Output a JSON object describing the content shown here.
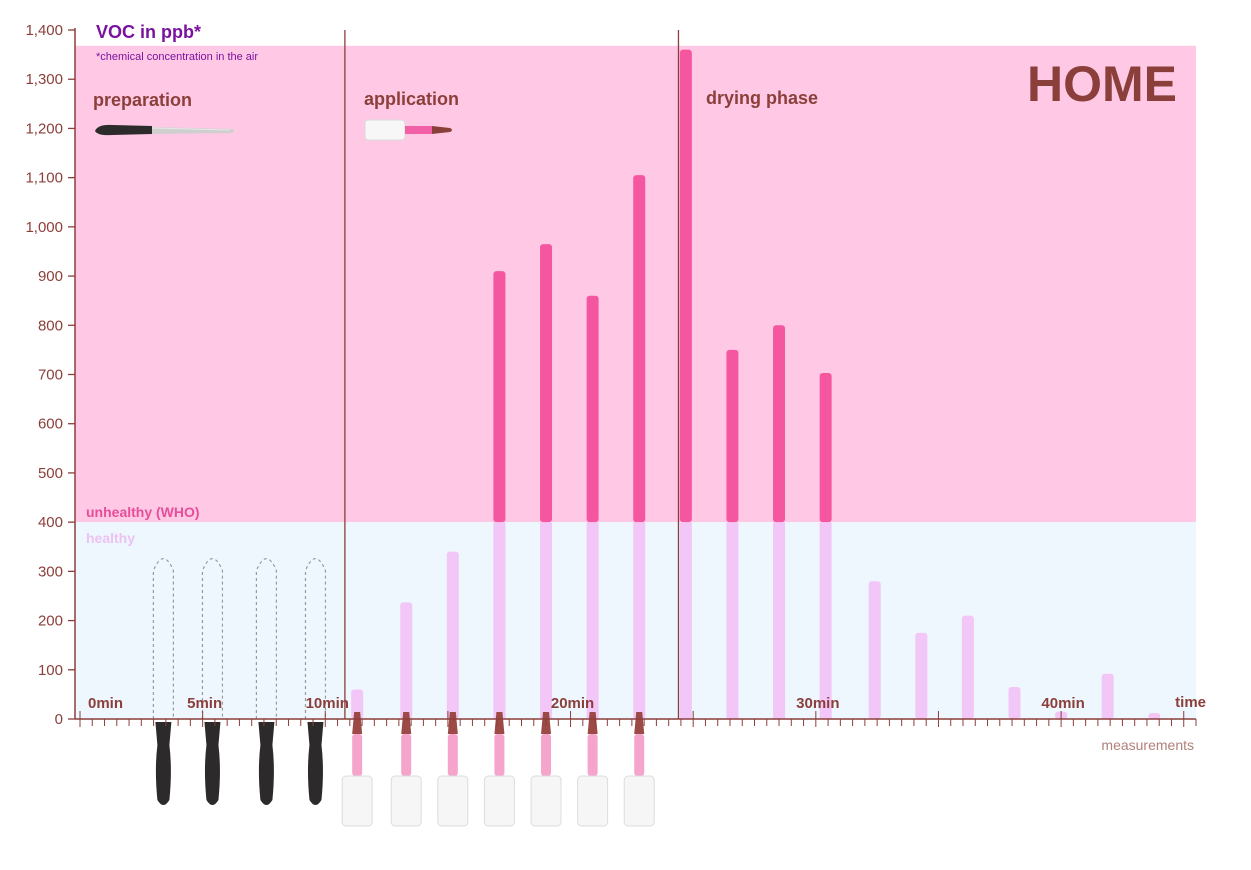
{
  "chart_data": {
    "type": "bar",
    "title": "VOC in ppb*",
    "subtitle": "*chemical concentration in the air",
    "badge": "HOME",
    "ylim": [
      0,
      1400
    ],
    "yticks": [
      0,
      100,
      200,
      300,
      400,
      500,
      600,
      700,
      800,
      900,
      1000,
      1100,
      1200,
      1300,
      1400
    ],
    "ytick_labels": [
      "0",
      "100",
      "200",
      "300",
      "400",
      "500",
      "600",
      "700",
      "800",
      "900",
      "1,000",
      "1,100",
      "1,200",
      "1,300",
      "1,400"
    ],
    "xlim": [
      0,
      45.5
    ],
    "xtick_labels": [
      {
        "x": 0,
        "label": "0min"
      },
      {
        "x": 5,
        "label": "5min"
      },
      {
        "x": 10,
        "label": "10min"
      },
      {
        "x": 20,
        "label": "20min"
      },
      {
        "x": 30,
        "label": "30min"
      },
      {
        "x": 40,
        "label": "40min"
      }
    ],
    "xlabel": "time",
    "x_sublabel": "measurements",
    "threshold": {
      "value": 400,
      "above_label": "unhealthy (WHO)",
      "below_label": "healthy"
    },
    "phases": [
      {
        "label": "preparation",
        "start": 0,
        "end": 10.8
      },
      {
        "label": "application",
        "start": 10.8,
        "end": 24.4
      },
      {
        "label": "drying phase",
        "start": 24.4,
        "end": 45.5
      }
    ],
    "x": [
      11.3,
      13.3,
      15.2,
      17.1,
      19.0,
      20.9,
      22.8,
      24.7,
      26.6,
      28.5,
      30.4,
      32.4,
      34.3,
      36.2,
      38.1,
      40.0,
      41.9,
      43.8
    ],
    "values": [
      60,
      237,
      340,
      910,
      965,
      860,
      1105,
      1360,
      750,
      800,
      703,
      280,
      175,
      210,
      65,
      15,
      92,
      12
    ],
    "file_markers_x": [
      3.4,
      5.4,
      7.6,
      9.6
    ],
    "file_marker_height": 330,
    "brush_markers_x": [
      11.3,
      13.3,
      15.2,
      17.1,
      19.0,
      20.9,
      22.8
    ],
    "colors": {
      "unhealthy_zone": "#ffc9e5",
      "healthy_zone": "#eef6fe",
      "bar_high": "#f4579f",
      "bar_low": "#f2c6f6",
      "axis": "#8b3f3a",
      "title": "#7a12a0",
      "file_tool": "#2c2a2a",
      "brush_body": "#f49bc6"
    },
    "icons": [
      "nail-file-icon",
      "nail-polish-brush-icon"
    ]
  }
}
